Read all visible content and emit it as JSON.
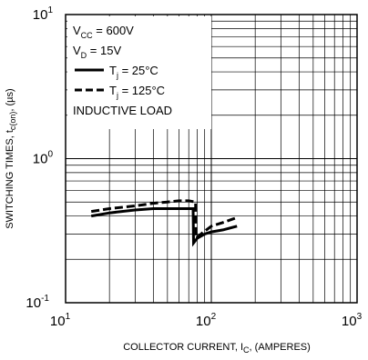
{
  "chart_data": {
    "type": "line",
    "title": "",
    "x_scale": "log",
    "y_scale": "log",
    "xlim": [
      10,
      1000
    ],
    "ylim": [
      0.1,
      10
    ],
    "grid": true,
    "legend_placement": "top-left",
    "x_ticks": [
      {
        "base": "10",
        "exp": "1"
      },
      {
        "base": "10",
        "exp": "2"
      },
      {
        "base": "10",
        "exp": "3"
      }
    ],
    "y_ticks": [
      {
        "base": "10",
        "exp": "1"
      },
      {
        "base": "10",
        "exp": "0"
      },
      {
        "base": "10",
        "exp": "-1"
      }
    ],
    "xlabel": {
      "main": "COLLECTOR CURRENT, I",
      "sub": "C",
      "tail": ", (AMPERES)"
    },
    "ylabel": {
      "main": "SWITCHING TIMES, t",
      "sub": "c(on)",
      "tail": ", (µs)"
    },
    "conditions": [
      {
        "main": "V",
        "sub": "CC",
        "tail": " = 600V"
      },
      {
        "main": "V",
        "sub": "D",
        "tail": " = 15V"
      }
    ],
    "note": "INDUCTIVE LOAD",
    "series": [
      {
        "name": {
          "main": "T",
          "sub": "j",
          "tail": " = 25°C"
        },
        "dash": "solid",
        "x": [
          15,
          20,
          30,
          40,
          50,
          60,
          70,
          75,
          75.5,
          80,
          90,
          100,
          120,
          150
        ],
        "y": [
          0.4,
          0.42,
          0.44,
          0.45,
          0.45,
          0.45,
          0.45,
          0.45,
          0.26,
          0.28,
          0.3,
          0.31,
          0.32,
          0.34
        ]
      },
      {
        "name": {
          "main": "T",
          "sub": "j",
          "tail": " = 125°C"
        },
        "dash": "dashed",
        "x": [
          15,
          20,
          30,
          40,
          50,
          60,
          70,
          78,
          78.5,
          85,
          100,
          120,
          150
        ],
        "y": [
          0.43,
          0.45,
          0.47,
          0.49,
          0.5,
          0.51,
          0.51,
          0.5,
          0.28,
          0.3,
          0.34,
          0.36,
          0.39
        ]
      }
    ]
  }
}
